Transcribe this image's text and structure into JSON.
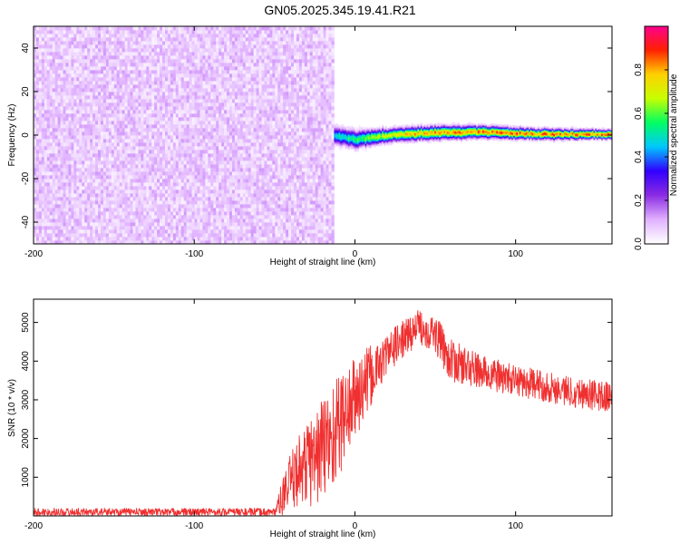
{
  "title": "GN05.2025.345.19.41.R21",
  "chart_data": [
    {
      "type": "heatmap",
      "xlabel": "Height of straight line (km)",
      "ylabel": "Frequency (Hz)",
      "xlim": [
        -200,
        160
      ],
      "ylim": [
        -50,
        50
      ],
      "xticks": [
        -200,
        -100,
        0,
        100
      ],
      "yticks": [
        -40,
        -20,
        0,
        20,
        40
      ],
      "colorbar": {
        "label": "Normalized spectral amplitude",
        "range": [
          0,
          1
        ],
        "ticks": [
          0.0,
          0.2,
          0.4,
          0.6,
          0.8
        ],
        "tick_labels": [
          "0.0",
          "0.2",
          "0.4",
          "0.6",
          "0.8"
        ],
        "colors": [
          "#ffffff",
          "#e0b0ff",
          "#8a2be2",
          "#3000ff",
          "#00c8ff",
          "#00ff60",
          "#c8ff00",
          "#ffd000",
          "#ff2000",
          "#ff0090"
        ]
      },
      "noise_region": {
        "x_range": [
          -200,
          -13
        ],
        "freq_range": [
          -50,
          50
        ],
        "amplitude_range": [
          0.02,
          0.13
        ]
      },
      "signal_band": {
        "x_range": [
          -13,
          160
        ],
        "center_freq": [
          [
            -13,
            0
          ],
          [
            0,
            -2
          ],
          [
            20,
            0
          ],
          [
            40,
            1
          ],
          [
            80,
            1.5
          ],
          [
            120,
            0.5
          ],
          [
            160,
            0.5
          ]
        ],
        "half_width_hz": [
          [
            -13,
            4
          ],
          [
            0,
            4
          ],
          [
            20,
            3
          ],
          [
            50,
            3
          ],
          [
            100,
            2.5
          ],
          [
            160,
            2
          ]
        ],
        "peak_amplitude": [
          [
            -13,
            0.5
          ],
          [
            10,
            0.65
          ],
          [
            40,
            0.85
          ],
          [
            100,
            0.88
          ],
          [
            160,
            0.9
          ]
        ]
      }
    },
    {
      "type": "line",
      "xlabel": "Height of straight line (km)",
      "ylabel": "SNR (10 * v/v)",
      "xlim": [
        -200,
        160
      ],
      "ylim": [
        0,
        5600
      ],
      "xticks": [
        -200,
        -100,
        0,
        100
      ],
      "yticks": [
        1000,
        2000,
        3000,
        4000,
        5000
      ],
      "color": "#f03030",
      "series_envelope": [
        {
          "x": -200,
          "mean": 100,
          "spread": 100
        },
        {
          "x": -50,
          "mean": 100,
          "spread": 100
        },
        {
          "x": -42,
          "mean": 700,
          "spread": 700
        },
        {
          "x": -35,
          "mean": 1200,
          "spread": 900
        },
        {
          "x": -25,
          "mean": 1500,
          "spread": 1300
        },
        {
          "x": -15,
          "mean": 2000,
          "spread": 1500
        },
        {
          "x": -5,
          "mean": 2700,
          "spread": 1200
        },
        {
          "x": 5,
          "mean": 3300,
          "spread": 1000
        },
        {
          "x": 15,
          "mean": 3900,
          "spread": 600
        },
        {
          "x": 25,
          "mean": 4400,
          "spread": 500
        },
        {
          "x": 40,
          "mean": 4900,
          "spread": 450
        },
        {
          "x": 50,
          "mean": 4700,
          "spread": 500
        },
        {
          "x": 60,
          "mean": 4000,
          "spread": 550
        },
        {
          "x": 80,
          "mean": 3700,
          "spread": 450
        },
        {
          "x": 100,
          "mean": 3500,
          "spread": 400
        },
        {
          "x": 130,
          "mean": 3250,
          "spread": 400
        },
        {
          "x": 160,
          "mean": 3050,
          "spread": 400
        }
      ]
    }
  ]
}
